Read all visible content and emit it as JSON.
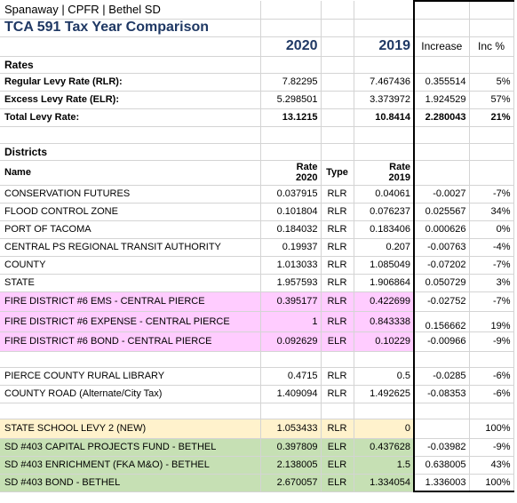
{
  "header": {
    "location": "Spanaway | CPFR | Bethel SD",
    "title": "TCA 591 Tax Year Comparison",
    "year_a": "2020",
    "year_b": "2019",
    "increase_label": "Increase",
    "inc_pct_label": "Inc %"
  },
  "rates": {
    "section_label": "Rates",
    "rows": [
      {
        "name": "Regular Levy Rate (RLR):",
        "v2020": "7.82295",
        "v2019": "7.467436",
        "inc": "0.355514",
        "pct": "5%"
      },
      {
        "name": "Excess Levy Rate (ELR):",
        "v2020": "5.298501",
        "v2019": "3.373972",
        "inc": "1.924529",
        "pct": "57%"
      },
      {
        "name": "Total Levy Rate:",
        "v2020": "13.1215",
        "v2019": "10.8414",
        "inc": "2.280043",
        "pct": "21%"
      }
    ]
  },
  "districts": {
    "section_label": "Districts",
    "col_name": "Name",
    "col_rate_2020_a": "Rate",
    "col_rate_2020_b": "2020",
    "col_type": "Type",
    "col_rate_2019_a": "Rate",
    "col_rate_2019_b": "2019",
    "rows": [
      {
        "name": "CONSERVATION FUTURES",
        "r2020": "0.037915",
        "type": "RLR",
        "r2019": "0.04061",
        "inc": "-0.0027",
        "pct": "-7%",
        "hl": ""
      },
      {
        "name": "FLOOD CONTROL ZONE",
        "r2020": "0.101804",
        "type": "RLR",
        "r2019": "0.076237",
        "inc": "0.025567",
        "pct": "34%",
        "hl": ""
      },
      {
        "name": "PORT OF TACOMA",
        "r2020": "0.184032",
        "type": "RLR",
        "r2019": "0.183406",
        "inc": "0.000626",
        "pct": "0%",
        "hl": ""
      },
      {
        "name": "CENTRAL PS REGIONAL TRANSIT AUTHORITY",
        "r2020": "0.19937",
        "type": "RLR",
        "r2019": "0.207",
        "inc": "-0.00763",
        "pct": "-4%",
        "hl": ""
      },
      {
        "name": "COUNTY",
        "r2020": "1.013033",
        "type": "RLR",
        "r2019": "1.085049",
        "inc": "-0.07202",
        "pct": "-7%",
        "hl": ""
      },
      {
        "name": "STATE",
        "r2020": "1.957593",
        "type": "RLR",
        "r2019": "1.906864",
        "inc": "0.050729",
        "pct": "3%",
        "hl": ""
      },
      {
        "name": "FIRE DISTRICT #6 EMS - CENTRAL PIERCE",
        "r2020": "0.395177",
        "type": "RLR",
        "r2019": "0.422699",
        "inc": "-0.02752",
        "pct": "-7%",
        "hl": "pink"
      },
      {
        "name": "FIRE DISTRICT #6 EXPENSE - CENTRAL PIERCE",
        "r2020": "1",
        "type": "RLR",
        "r2019": "0.843338",
        "inc": "0.156662",
        "pct": "19%",
        "hl": "pink"
      },
      {
        "name": "FIRE DISTRICT #6 BOND - CENTRAL PIERCE",
        "r2020": "0.092629",
        "type": "ELR",
        "r2019": "0.10229",
        "inc": "-0.00966",
        "pct": "-9%",
        "hl": "pink"
      },
      {
        "name": "PIERCE COUNTY RURAL LIBRARY",
        "r2020": "0.4715",
        "type": "RLR",
        "r2019": "0.5",
        "inc": "-0.0285",
        "pct": "-6%",
        "hl": ""
      },
      {
        "name": "COUNTY ROAD   (Alternate/City Tax)",
        "r2020": "1.409094",
        "type": "RLR",
        "r2019": "1.492625",
        "inc": "-0.08353",
        "pct": "-6%",
        "hl": ""
      },
      {
        "name": "STATE SCHOOL LEVY 2   (NEW)",
        "r2020": "1.053433",
        "type": "RLR",
        "r2019": "0",
        "inc": "",
        "pct": "100%",
        "hl": "yellow"
      },
      {
        "name": "SD #403 CAPITAL PROJECTS FUND - BETHEL",
        "r2020": "0.397809",
        "type": "ELR",
        "r2019": "0.437628",
        "inc": "-0.03982",
        "pct": "-9%",
        "hl": "green"
      },
      {
        "name": "SD #403 ENRICHMENT (FKA M&O) - BETHEL",
        "r2020": "2.138005",
        "type": "ELR",
        "r2019": "1.5",
        "inc": "0.638005",
        "pct": "43%",
        "hl": "green"
      },
      {
        "name": "SD #403 BOND - BETHEL",
        "r2020": "2.670057",
        "type": "ELR",
        "r2019": "1.334054",
        "inc": "1.336003",
        "pct": "100%",
        "hl": "green"
      }
    ]
  },
  "colors": {
    "title": "#1f3864",
    "pink": "#ffccff",
    "yellow": "#fff2cc",
    "green": "#c6e0b4"
  }
}
